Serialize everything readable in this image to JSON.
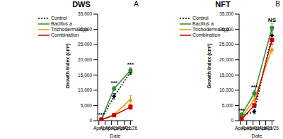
{
  "chart_data": [
    {
      "type": "line",
      "title": "DWS",
      "subtitle": "A",
      "x_label": "Date",
      "y_label": "Growth Index (cm³)",
      "x": [
        3,
        13,
        26
      ],
      "xlim": [
        0,
        28
      ],
      "xticks": [
        {
          "value": 1,
          "label": "Apr/1"
        },
        {
          "value": 6,
          "label": "Apr/6"
        },
        {
          "value": 11,
          "label": "Apr/11"
        },
        {
          "value": 16,
          "label": "Apr/16"
        },
        {
          "value": 21,
          "label": "Apr/21"
        },
        {
          "value": 26,
          "label": "Apr/26"
        }
      ],
      "ylim": [
        0,
        35000
      ],
      "yticks": [
        0,
        {
          "value": 5000,
          "label": "5,000"
        },
        {
          "value": 10000,
          "label": "10,000"
        },
        {
          "value": 15000,
          "label": "15,000"
        },
        {
          "value": 20000,
          "label": "20,000"
        },
        {
          "value": 25000,
          "label": "25,000"
        },
        {
          "value": 30000,
          "label": "30,000"
        },
        {
          "value": 35000,
          "label": "35,000"
        }
      ],
      "legend": "upper left",
      "series": [
        {
          "name": "Control",
          "color": "#000000",
          "marker": "diamond",
          "line_style": "dotted",
          "values": [
            500,
            8000,
            16000
          ],
          "errors": [
            200,
            900,
            800
          ]
        },
        {
          "name": "Bacillus a",
          "color": "#2e8b2e",
          "marker": "circle",
          "line_style": "solid",
          "values": [
            500,
            10500,
            16500
          ],
          "errors": [
            200,
            700,
            900
          ]
        },
        {
          "name": "Trichoderma spp.",
          "color": "#e69a00",
          "marker": "triangle",
          "line_style": "solid",
          "values": [
            300,
            2000,
            7000
          ],
          "errors": [
            100,
            300,
            1200
          ]
        },
        {
          "name": "Combination",
          "color": "#cc0000",
          "marker": "square",
          "line_style": "solid",
          "values": [
            300,
            1800,
            4500
          ],
          "errors": [
            100,
            300,
            800
          ]
        }
      ],
      "annotations": [
        {
          "text": "***",
          "x": 3,
          "y": 2000
        },
        {
          "text": "***",
          "x": 13,
          "y": 12500
        },
        {
          "text": "***",
          "x": 26,
          "y": 18500
        }
      ]
    },
    {
      "type": "line",
      "title": "NFT",
      "subtitle": "B",
      "x_label": "Date",
      "y_label": "Growth Index (cm³)",
      "x": [
        2,
        12,
        26
      ],
      "xlim": [
        0,
        28
      ],
      "xticks": [
        {
          "value": 1,
          "label": "Apr/1"
        },
        {
          "value": 6,
          "label": "Apr/6"
        },
        {
          "value": 11,
          "label": "Apr/11"
        },
        {
          "value": 16,
          "label": "Apr/16"
        },
        {
          "value": 21,
          "label": "Apr/21"
        },
        {
          "value": 26,
          "label": "Apr/26"
        }
      ],
      "ylim": [
        0,
        35000
      ],
      "yticks": [
        0,
        {
          "value": 5000,
          "label": "5,000"
        },
        {
          "value": 10000,
          "label": "10,000"
        },
        {
          "value": 15000,
          "label": "15,000"
        },
        {
          "value": 20000,
          "label": "20,000"
        },
        {
          "value": 25000,
          "label": "25,000"
        },
        {
          "value": 30000,
          "label": "30,000"
        },
        {
          "value": 35000,
          "label": "35,000"
        }
      ],
      "legend": "upper left",
      "series": [
        {
          "name": "Control",
          "color": "#000000",
          "marker": "diamond",
          "line_style": "dotted",
          "values": [
            1500,
            3000,
            28000
          ],
          "errors": [
            300,
            800,
            1500
          ]
        },
        {
          "name": "Bacillus a",
          "color": "#2e8b2e",
          "marker": "circle",
          "line_style": "solid",
          "values": [
            2000,
            9000,
            30500
          ],
          "errors": [
            300,
            900,
            1500
          ]
        },
        {
          "name": "Trichoderma spp.",
          "color": "#e69a00",
          "marker": "triangle",
          "line_style": "solid",
          "values": [
            1000,
            7000,
            23500
          ],
          "errors": [
            200,
            700,
            1500
          ]
        },
        {
          "name": "Combination",
          "color": "#cc0000",
          "marker": "square",
          "line_style": "solid",
          "values": [
            500,
            5000,
            26500
          ],
          "errors": [
            200,
            600,
            1500
          ]
        }
      ],
      "annotations": [
        {
          "text": "***",
          "x": 2,
          "y": 3500
        },
        {
          "text": "***",
          "x": 12,
          "y": 11000
        },
        {
          "text": "NS",
          "x": 26,
          "y": 33000
        }
      ]
    }
  ]
}
